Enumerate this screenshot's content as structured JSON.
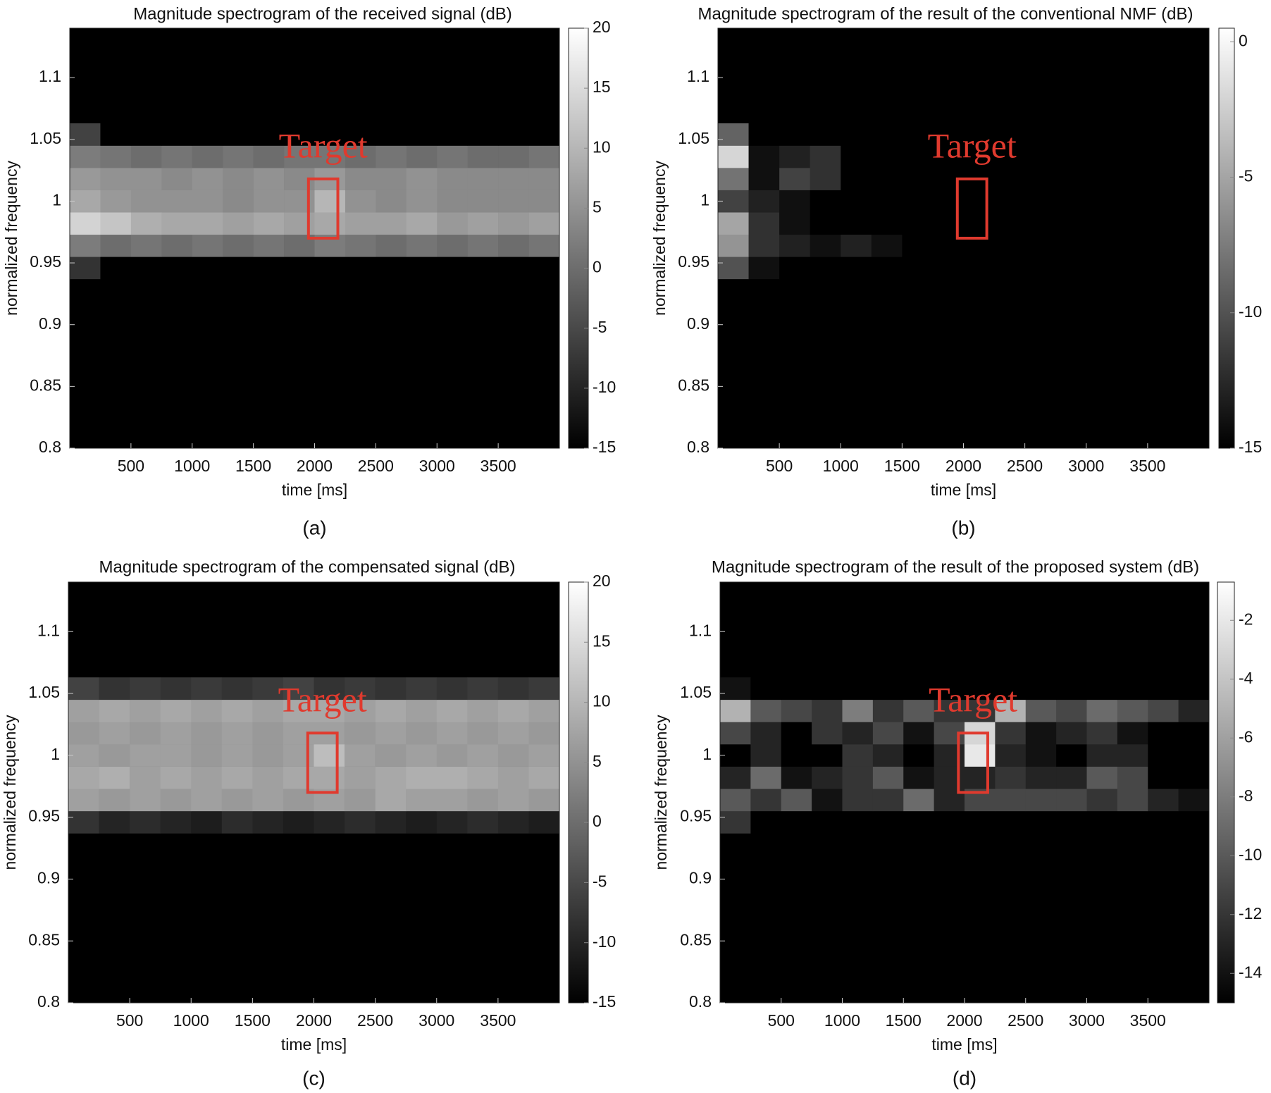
{
  "chart_data": [
    {
      "type": "heatmap",
      "title": "Magnitude spectrogram of the received signal (dB)",
      "xlabel": "time [ms]",
      "ylabel": "normalized frequency",
      "caption": "(a)",
      "xbins": [
        0,
        250,
        500,
        750,
        1000,
        1250,
        1500,
        1750,
        2000,
        2250,
        2500,
        2750,
        3000,
        3250,
        3500,
        3750,
        4000
      ],
      "ybins": [
        0.937,
        0.955,
        0.973,
        0.991,
        1.009,
        1.027,
        1.045,
        1.063
      ],
      "values": [
        [
          -8,
          -15,
          -15,
          -15,
          -15,
          -15,
          -15,
          -15,
          -15,
          -15,
          -15,
          -15,
          -15,
          -15,
          -15,
          -15
        ],
        [
          2,
          0,
          1,
          0,
          1,
          0,
          1,
          0,
          2,
          1,
          0,
          1,
          0,
          1,
          0,
          1
        ],
        [
          14,
          12,
          9,
          8,
          8,
          7,
          8,
          7,
          8,
          7,
          7,
          8,
          6,
          7,
          6,
          7
        ],
        [
          8,
          6,
          5,
          5,
          5,
          4,
          5,
          5,
          10,
          5,
          4,
          5,
          4,
          4,
          4,
          4
        ],
        [
          6,
          5,
          5,
          4,
          5,
          4,
          5,
          4,
          6,
          4,
          4,
          5,
          4,
          4,
          4,
          4
        ],
        [
          2,
          1,
          0,
          1,
          0,
          1,
          0,
          1,
          1,
          0,
          1,
          0,
          1,
          0,
          0,
          1
        ],
        [
          -6,
          -15,
          -15,
          -15,
          -15,
          -15,
          -15,
          -15,
          -15,
          -15,
          -15,
          -15,
          -15,
          -15,
          -15,
          -15
        ]
      ],
      "xlim": [
        0,
        4000
      ],
      "ylim": [
        0.8,
        1.14
      ],
      "xticks": [
        500,
        1000,
        1500,
        2000,
        2500,
        3000,
        3500
      ],
      "yticks": [
        0.8,
        0.85,
        0.9,
        0.95,
        1,
        1.05,
        1.1
      ],
      "clim": [
        -15,
        20
      ],
      "cticks": [
        -15,
        -10,
        -5,
        0,
        5,
        10,
        15,
        20
      ],
      "colormap": "gray",
      "annotation": {
        "text": "Target",
        "xrange": [
          1950,
          2190
        ],
        "yrange": [
          0.97,
          1.018
        ],
        "color": "#e03a2e"
      }
    },
    {
      "type": "heatmap",
      "title": "Magnitude spectrogram of the result of the conventional NMF (dB)",
      "xlabel": "time [ms]",
      "ylabel": "normalized frequency",
      "caption": "(b)",
      "xbins": [
        0,
        250,
        500,
        750,
        1000,
        1250,
        1500,
        1750,
        2000,
        2250,
        2500,
        2750,
        3000,
        3250,
        3500,
        3750,
        4000
      ],
      "ybins": [
        0.937,
        0.955,
        0.973,
        0.991,
        1.009,
        1.027,
        1.045,
        1.063
      ],
      "values": [
        [
          -10,
          -14,
          -15,
          -15,
          -15,
          -15,
          -15,
          -15,
          -15,
          -15,
          -15,
          -15,
          -15,
          -15,
          -15,
          -15
        ],
        [
          -6,
          -12,
          -13,
          -14,
          -13,
          -14,
          -15,
          -15,
          -15,
          -15,
          -15,
          -15,
          -15,
          -15,
          -15,
          -15
        ],
        [
          -5,
          -12,
          -14,
          -15,
          -15,
          -15,
          -15,
          -15,
          -15,
          -15,
          -15,
          -15,
          -15,
          -15,
          -15,
          -15
        ],
        [
          -11,
          -13,
          -14,
          -15,
          -15,
          -15,
          -15,
          -15,
          -15,
          -15,
          -15,
          -15,
          -15,
          -15,
          -15,
          -15
        ],
        [
          -8,
          -14,
          -11,
          -12,
          -15,
          -15,
          -15,
          -15,
          -15,
          -15,
          -15,
          -15,
          -15,
          -15,
          -15,
          -15
        ],
        [
          -2,
          -14,
          -13,
          -12,
          -15,
          -15,
          -15,
          -15,
          -15,
          -15,
          -15,
          -15,
          -15,
          -15,
          -15,
          -15
        ],
        [
          -9,
          -15,
          -15,
          -15,
          -15,
          -15,
          -15,
          -15,
          -15,
          -15,
          -15,
          -15,
          -15,
          -15,
          -15,
          -15
        ]
      ],
      "xlim": [
        0,
        4000
      ],
      "ylim": [
        0.8,
        1.14
      ],
      "xticks": [
        500,
        1000,
        1500,
        2000,
        2500,
        3000,
        3500
      ],
      "yticks": [
        0.8,
        0.85,
        0.9,
        0.95,
        1,
        1.05,
        1.1
      ],
      "clim": [
        -15,
        0.5
      ],
      "cticks": [
        -15,
        -10,
        -5,
        0
      ],
      "colormap": "gray",
      "annotation": {
        "text": "Target",
        "xrange": [
          1950,
          2190
        ],
        "yrange": [
          0.97,
          1.018
        ],
        "color": "#e03a2e"
      }
    },
    {
      "type": "heatmap",
      "title": "Magnitude spectrogram of the compensated signal (dB)",
      "xlabel": "time [ms]",
      "ylabel": "normalized frequency",
      "caption": "(c)",
      "xbins": [
        0,
        250,
        500,
        750,
        1000,
        1250,
        1500,
        1750,
        2000,
        2250,
        2500,
        2750,
        3000,
        3250,
        3500,
        3750,
        4000
      ],
      "ybins": [
        0.937,
        0.955,
        0.973,
        0.991,
        1.009,
        1.027,
        1.045,
        1.063
      ],
      "values": [
        [
          -8,
          -10,
          -9,
          -10,
          -11,
          -9,
          -10,
          -11,
          -10,
          -9,
          -10,
          -11,
          -10,
          -9,
          -10,
          -11
        ],
        [
          7,
          6,
          7,
          6,
          7,
          6,
          7,
          6,
          7,
          6,
          8,
          7,
          7,
          6,
          7,
          6
        ],
        [
          8,
          9,
          7,
          8,
          7,
          8,
          7,
          8,
          8,
          7,
          8,
          9,
          9,
          8,
          7,
          8
        ],
        [
          7,
          6,
          7,
          7,
          6,
          7,
          6,
          7,
          11,
          7,
          6,
          7,
          6,
          7,
          6,
          7
        ],
        [
          6,
          7,
          6,
          7,
          6,
          7,
          6,
          7,
          7,
          6,
          7,
          6,
          7,
          6,
          7,
          6
        ],
        [
          7,
          8,
          7,
          8,
          7,
          8,
          7,
          8,
          8,
          7,
          8,
          7,
          8,
          7,
          8,
          7
        ],
        [
          -6,
          -8,
          -7,
          -8,
          -7,
          -8,
          -7,
          -6,
          -8,
          -7,
          -8,
          -7,
          -8,
          -7,
          -8,
          -7
        ]
      ],
      "xlim": [
        0,
        4000
      ],
      "ylim": [
        0.8,
        1.14
      ],
      "xticks": [
        500,
        1000,
        1500,
        2000,
        2500,
        3000,
        3500
      ],
      "yticks": [
        0.8,
        0.85,
        0.9,
        0.95,
        1,
        1.05,
        1.1
      ],
      "clim": [
        -15,
        20
      ],
      "cticks": [
        -15,
        -10,
        -5,
        0,
        5,
        10,
        15,
        20
      ],
      "colormap": "gray",
      "annotation": {
        "text": "Target",
        "xrange": [
          1950,
          2190
        ],
        "yrange": [
          0.97,
          1.018
        ],
        "color": "#e03a2e"
      }
    },
    {
      "type": "heatmap",
      "title": "Magnitude spectrogram of the result of the proposed system (dB)",
      "xlabel": "time [ms]",
      "ylabel": "normalized frequency",
      "caption": "(d)",
      "xbins": [
        0,
        250,
        500,
        750,
        1000,
        1250,
        1500,
        1750,
        2000,
        2250,
        2500,
        2750,
        3000,
        3250,
        3500,
        3750,
        4000
      ],
      "ybins": [
        0.937,
        0.955,
        0.973,
        0.991,
        1.009,
        1.027,
        1.045,
        1.063
      ],
      "values": [
        [
          -12,
          -15,
          -15,
          -15,
          -15,
          -15,
          -15,
          -15,
          -15,
          -15,
          -15,
          -15,
          -15,
          -15,
          -15,
          -15
        ],
        [
          -10,
          -12,
          -10,
          -14,
          -12,
          -12,
          -9,
          -13,
          -11,
          -11,
          -11,
          -11,
          -12,
          -11,
          -13,
          -14
        ],
        [
          -13,
          -9,
          -14,
          -13,
          -12,
          -10,
          -14,
          -13,
          -13,
          -12,
          -13,
          -13,
          -10,
          -11,
          -15,
          -15
        ],
        [
          -15,
          -13,
          -15,
          -15,
          -12,
          -13,
          -15,
          -13,
          -2,
          -13,
          -14,
          -15,
          -13,
          -13,
          -15,
          -15
        ],
        [
          -11,
          -13,
          -15,
          -12,
          -13,
          -11,
          -14,
          -11,
          -3,
          -12,
          -14,
          -13,
          -12,
          -14,
          -15,
          -15
        ],
        [
          -5,
          -10,
          -11,
          -12,
          -8,
          -12,
          -10,
          -12,
          -12,
          -5,
          -10,
          -11,
          -9,
          -10,
          -11,
          -13
        ],
        [
          -14,
          -15,
          -15,
          -15,
          -15,
          -15,
          -15,
          -15,
          -15,
          -15,
          -15,
          -15,
          -15,
          -15,
          -15,
          -15
        ]
      ],
      "xlim": [
        0,
        4000
      ],
      "ylim": [
        0.8,
        1.14
      ],
      "xticks": [
        500,
        1000,
        1500,
        2000,
        2500,
        3000,
        3500
      ],
      "yticks": [
        0.8,
        0.85,
        0.9,
        0.95,
        1,
        1.05,
        1.1
      ],
      "clim": [
        -15,
        -0.7
      ],
      "cticks": [
        -14,
        -12,
        -10,
        -8,
        -6,
        -4,
        -2
      ],
      "colormap": "gray",
      "annotation": {
        "text": "Target",
        "xrange": [
          1950,
          2190
        ],
        "yrange": [
          0.97,
          1.018
        ],
        "color": "#e03a2e"
      }
    }
  ]
}
